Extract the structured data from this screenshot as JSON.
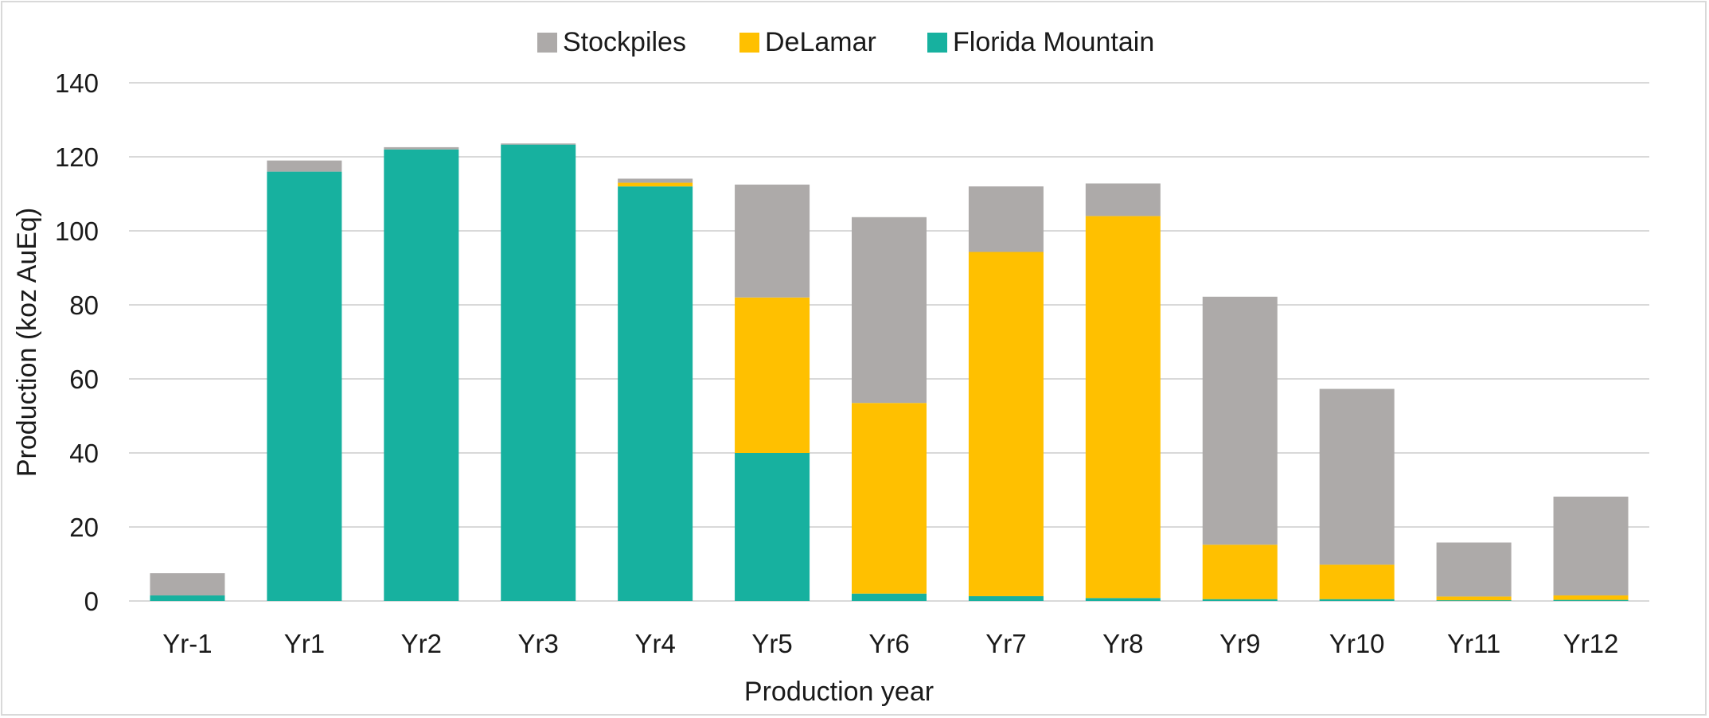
{
  "chart_data": {
    "type": "bar",
    "stacked": true,
    "categories": [
      "Yr-1",
      "Yr1",
      "Yr2",
      "Yr3",
      "Yr4",
      "Yr5",
      "Yr6",
      "Yr7",
      "Yr8",
      "Yr9",
      "Yr10",
      "Yr11",
      "Yr12"
    ],
    "series": [
      {
        "name": "Florida Mountain",
        "color": "#17b19f",
        "values": [
          1.5,
          116,
          122,
          123.3,
          112,
          40,
          2,
          1.3,
          0.8,
          0.5,
          0.5,
          0.2,
          0.3
        ]
      },
      {
        "name": "DeLamar",
        "color": "#ffc000",
        "values": [
          0,
          0,
          0,
          0,
          1,
          42,
          51.5,
          93,
          103.2,
          14.7,
          9.3,
          1,
          1.2
        ]
      },
      {
        "name": "Stockpiles",
        "color": "#adaaa9",
        "values": [
          6,
          3,
          0.6,
          0.3,
          1.1,
          30.5,
          50.2,
          17.7,
          8.8,
          67,
          47.5,
          14.6,
          26.7
        ]
      }
    ],
    "legend": [
      "Stockpiles",
      "DeLamar",
      "Florida Mountain"
    ],
    "legend_position": "top-center",
    "xlabel": "Production year",
    "ylabel": "Production (koz AuEq)",
    "ylim": [
      0,
      140
    ],
    "yticks": [
      "0",
      "20",
      "40",
      "60",
      "80",
      "100",
      "120",
      "140"
    ],
    "grid": true,
    "gridline_color": "#d9d9d9"
  }
}
